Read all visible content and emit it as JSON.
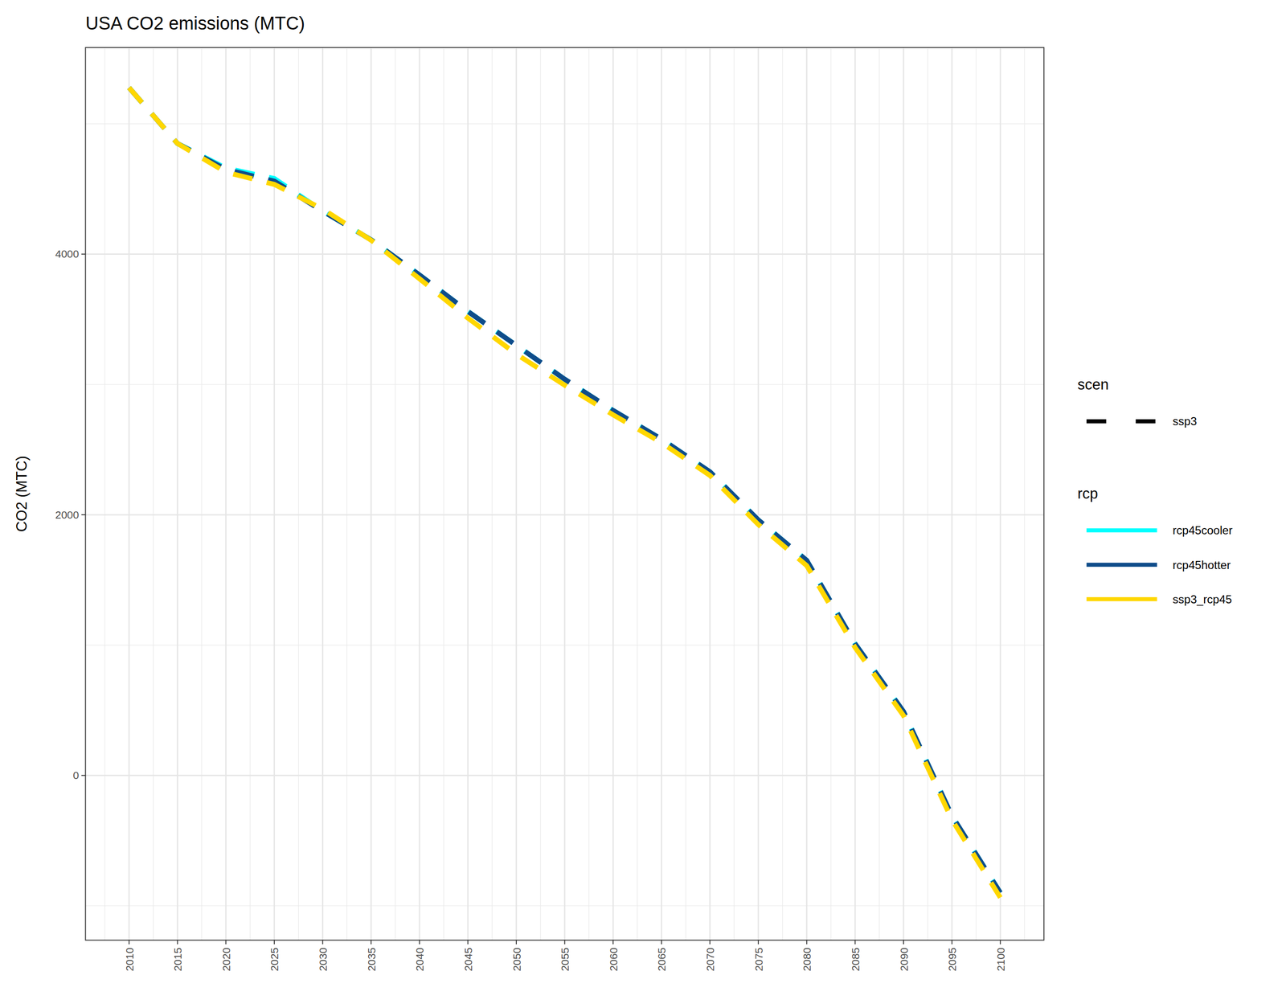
{
  "chart_data": {
    "type": "line",
    "title": "USA CO2 emissions (MTC)",
    "y_label": "CO2 (MTC)",
    "x": [
      2010,
      2015,
      2020,
      2025,
      2030,
      2035,
      2040,
      2045,
      2050,
      2055,
      2060,
      2065,
      2070,
      2075,
      2080,
      2085,
      2090,
      2095,
      2100
    ],
    "xlim": [
      2005.5,
      2104.5
    ],
    "xticks": [
      2010,
      2015,
      2020,
      2025,
      2030,
      2035,
      2040,
      2045,
      2050,
      2055,
      2060,
      2065,
      2070,
      2075,
      2080,
      2085,
      2090,
      2095,
      2100
    ],
    "ylim": [
      -1264,
      5585
    ],
    "yticks": [
      0,
      2000,
      4000
    ],
    "grid": true,
    "legend": "right",
    "line_style": "dashed",
    "linetype_legend_title": "scen",
    "linetype_legend_label": "ssp3",
    "color_legend_title": "rcp",
    "series": [
      {
        "name": "rcp45cooler",
        "color": "#00FFFF",
        "values": [
          5277,
          4849,
          4660,
          4580,
          4330,
          4110,
          3840,
          3560,
          3300,
          3040,
          2800,
          2580,
          2330,
          1960,
          1650,
          1010,
          490,
          -310,
          -900
        ]
      },
      {
        "name": "rcp45hotter",
        "color": "#0F4C8A",
        "values": [
          5277,
          4849,
          4650,
          4560,
          4330,
          4110,
          3840,
          3560,
          3300,
          3040,
          2800,
          2580,
          2330,
          1960,
          1650,
          1010,
          490,
          -310,
          -900
        ]
      },
      {
        "name": "ssp3_rcp45",
        "color": "#FFD700",
        "values": [
          5277,
          4849,
          4629,
          4535,
          4346,
          4107,
          3811,
          3509,
          3233,
          2994,
          2767,
          2553,
          2302,
          1925,
          1610,
          981,
          459,
          -340,
          -937
        ]
      }
    ]
  }
}
